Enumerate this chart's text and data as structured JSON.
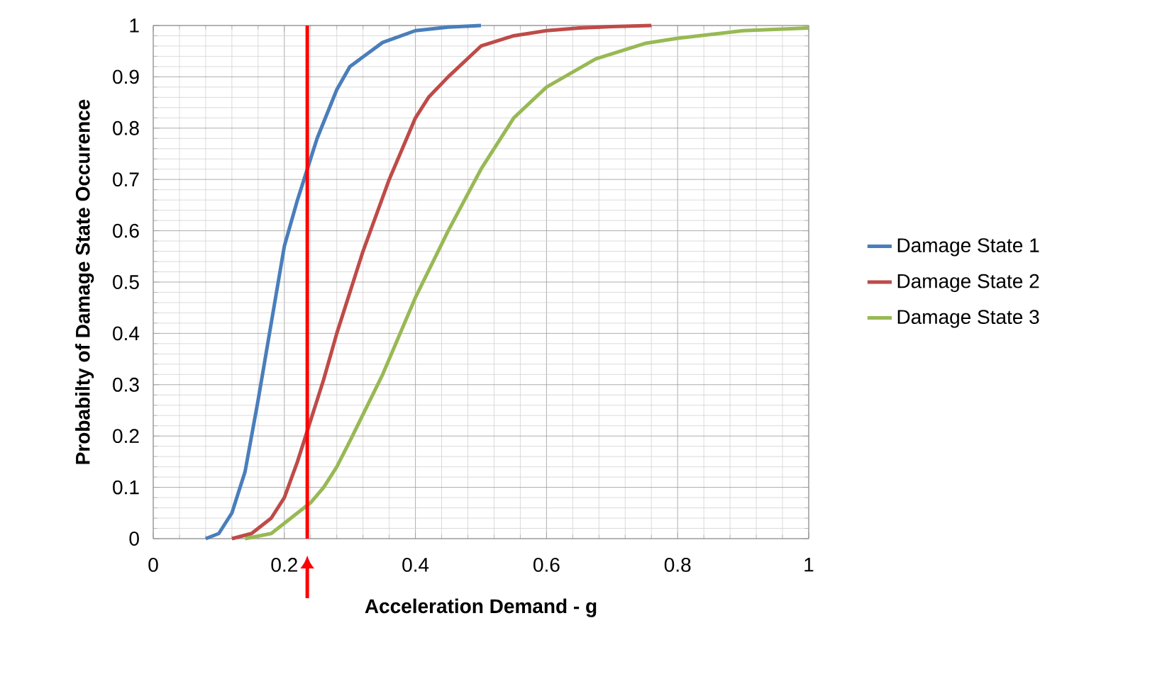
{
  "chart_data": {
    "type": "line",
    "xlabel": "Acceleration Demand - g",
    "ylabel": "Probabilty of Damage State Occurence",
    "xlim": [
      0,
      1
    ],
    "ylim": [
      0,
      1
    ],
    "xticks": [
      0,
      0.2,
      0.4,
      0.6,
      0.8,
      1
    ],
    "yticks": [
      0,
      0.1,
      0.2,
      0.3,
      0.4,
      0.5,
      0.6,
      0.7,
      0.8,
      0.9,
      1
    ],
    "grid": true,
    "legend": "right",
    "marker": "none",
    "line_style": "solid",
    "series": [
      {
        "name": "Damage State 1",
        "color": "#4a7ebb",
        "x": [
          0.08,
          0.1,
          0.12,
          0.14,
          0.16,
          0.18,
          0.2,
          0.22,
          0.25,
          0.28,
          0.3,
          0.35,
          0.4,
          0.45,
          0.5
        ],
        "values": [
          0,
          0.01,
          0.05,
          0.13,
          0.27,
          0.42,
          0.57,
          0.66,
          0.78,
          0.875,
          0.92,
          0.967,
          0.99,
          0.997,
          1
        ]
      },
      {
        "name": "Damage State 2",
        "color": "#be4b48",
        "x": [
          0.12,
          0.15,
          0.18,
          0.2,
          0.22,
          0.24,
          0.26,
          0.28,
          0.3,
          0.32,
          0.34,
          0.36,
          0.38,
          0.4,
          0.42,
          0.45,
          0.5,
          0.55,
          0.6,
          0.65,
          0.7,
          0.76
        ],
        "values": [
          0,
          0.01,
          0.04,
          0.08,
          0.15,
          0.23,
          0.31,
          0.4,
          0.48,
          0.56,
          0.63,
          0.7,
          0.76,
          0.82,
          0.86,
          0.9,
          0.96,
          0.98,
          0.99,
          0.995,
          0.998,
          1
        ]
      },
      {
        "name": "Damage State 3",
        "color": "#98b954",
        "x": [
          0.14,
          0.18,
          0.2,
          0.24,
          0.26,
          0.28,
          0.3,
          0.35,
          0.4,
          0.45,
          0.5,
          0.55,
          0.6,
          0.675,
          0.75,
          0.8,
          0.9,
          1
        ],
        "values": [
          0,
          0.01,
          0.03,
          0.07,
          0.1,
          0.14,
          0.19,
          0.32,
          0.47,
          0.6,
          0.72,
          0.82,
          0.88,
          0.935,
          0.965,
          0.975,
          0.99,
          0.995
        ]
      }
    ],
    "ref_lines": [
      {
        "axis": "x",
        "value": 0.235,
        "color": "#ff0000"
      }
    ]
  }
}
